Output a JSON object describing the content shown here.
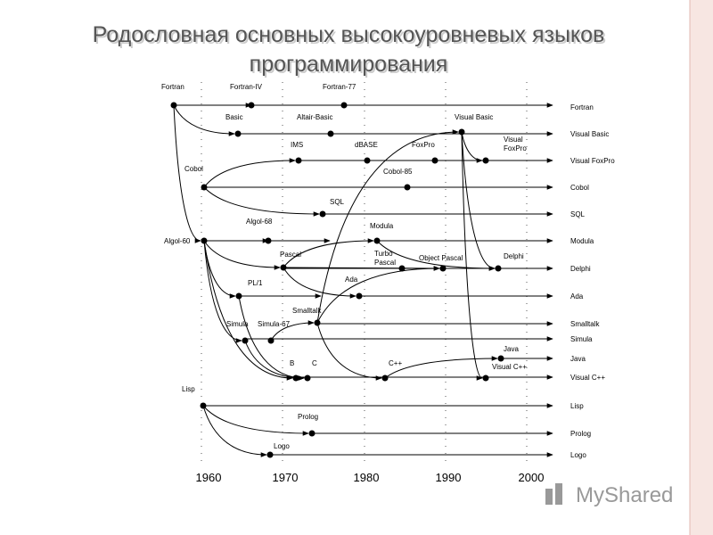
{
  "header": {
    "title_lines": [
      "Родословная основных высокоуровневых языков",
      "программирования"
    ]
  },
  "nodes": [
    {
      "label": "Fortran"
    },
    {
      "label": "Fortran-IV"
    },
    {
      "label": "Fortran-77"
    },
    {
      "label": "Basic"
    },
    {
      "label": "Altair-Basic"
    },
    {
      "label": "Visual Basic"
    },
    {
      "label": "IMS"
    },
    {
      "label": "dBASE"
    },
    {
      "label": "FoxPro"
    },
    {
      "lines": [
        "Visual",
        "FoxPro"
      ]
    },
    {
      "label": "Cobol"
    },
    {
      "label": "Cobol-85"
    },
    {
      "label": "SQL"
    },
    {
      "label": "Algol-60"
    },
    {
      "label": "Algol-68"
    },
    {
      "label": "Modula"
    },
    {
      "label": "Pascal"
    },
    {
      "lines": [
        "Turbo",
        "Pascal"
      ]
    },
    {
      "label": "Object Pascal"
    },
    {
      "label": "Delphi"
    },
    {
      "label": "Ada"
    },
    {
      "label": "PL/1"
    },
    {
      "label": "Smalltalk"
    },
    {
      "label": "Simula"
    },
    {
      "label": "Simula-67"
    },
    {
      "label": "B"
    },
    {
      "label": "C"
    },
    {
      "label": "C++"
    },
    {
      "label": "Java"
    },
    {
      "label": "Visual C++"
    },
    {
      "label": "Lisp"
    },
    {
      "label": "Prolog"
    },
    {
      "label": "Logo"
    }
  ],
  "rows": [
    "Fortran",
    "Visual Basic",
    "Visual FoxPro",
    "Cobol",
    "SQL",
    "Modula",
    "Delphi",
    "Ada",
    "Smalltalk",
    "Simula",
    "Java",
    "Visual C++",
    "Lisp",
    "Prolog",
    "Logo"
  ],
  "years": [
    1960,
    1970,
    1980,
    1990,
    2000
  ],
  "watermark": "MyShared"
}
